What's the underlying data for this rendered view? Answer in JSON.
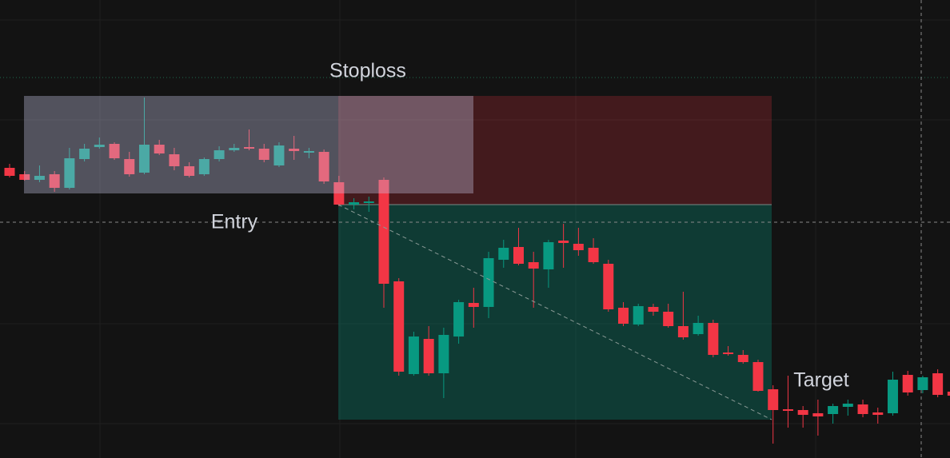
{
  "chart_data": {
    "type": "candlestick",
    "annotations": [
      "Stoploss",
      "Entry",
      "Target"
    ],
    "ylim": [
      0,
      573
    ],
    "up_color": "#089981",
    "down_color": "#f23645",
    "open": [
      363,
      355,
      348,
      355,
      338,
      374,
      389,
      393,
      374,
      357,
      392,
      380,
      365,
      355,
      374,
      385,
      389,
      387,
      366,
      387,
      382,
      383,
      345,
      317,
      319,
      348,
      221,
      105,
      149,
      106,
      152,
      194,
      189,
      248,
      264,
      245,
      236,
      272,
      268,
      263,
      243,
      188,
      167,
      189,
      183,
      165,
      155,
      169,
      132,
      129,
      120,
      86,
      61,
      60,
      56,
      55,
      64,
      67,
      57,
      56,
      104,
      85,
      106,
      83
    ],
    "high": [
      368,
      359,
      366,
      359,
      388,
      393,
      401,
      395,
      383,
      451,
      398,
      388,
      370,
      376,
      390,
      393,
      411,
      393,
      395,
      403,
      388,
      386,
      353,
      325,
      327,
      351,
      225,
      158,
      165,
      163,
      198,
      213,
      258,
      273,
      288,
      258,
      273,
      293,
      288,
      275,
      248,
      195,
      193,
      193,
      193,
      208,
      178,
      173,
      140,
      135,
      123,
      91,
      103,
      65,
      73,
      68,
      73,
      73,
      63,
      108,
      109,
      103,
      111,
      86
    ],
    "low": [
      351,
      347,
      345,
      333,
      336,
      371,
      387,
      373,
      352,
      355,
      379,
      360,
      351,
      353,
      371,
      383,
      385,
      370,
      364,
      373,
      375,
      343,
      315,
      311,
      308,
      188,
      103,
      103,
      103,
      75,
      143,
      163,
      175,
      238,
      241,
      188,
      213,
      238,
      253,
      243,
      183,
      165,
      165,
      178,
      163,
      148,
      153,
      126,
      128,
      118,
      83,
      18,
      38,
      38,
      28,
      43,
      53,
      51,
      43,
      53,
      78,
      81,
      76,
      76
    ],
    "close": [
      353,
      348,
      353,
      338,
      375,
      387,
      392,
      375,
      355,
      392,
      381,
      365,
      353,
      374,
      385,
      388,
      387,
      373,
      391,
      384,
      384,
      346,
      317,
      320,
      321,
      218,
      108,
      152,
      106,
      154,
      195,
      189,
      250,
      263,
      243,
      237,
      270,
      269,
      260,
      245,
      186,
      168,
      190,
      183,
      165,
      151,
      169,
      129,
      130,
      120,
      84,
      60,
      59,
      54,
      52,
      65,
      68,
      55,
      54,
      98,
      82,
      101,
      79,
      78
    ]
  }
}
